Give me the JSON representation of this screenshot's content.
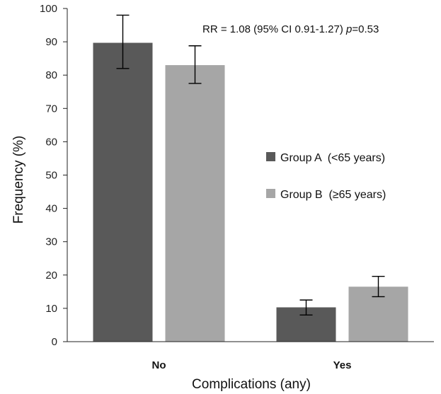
{
  "chart_data": {
    "type": "bar",
    "title": "",
    "xlabel": "Complications (any)",
    "ylabel": "Frequency  (%)",
    "ylim": [
      0,
      100
    ],
    "yticks": [
      0,
      10,
      20,
      30,
      40,
      50,
      60,
      70,
      80,
      90,
      100
    ],
    "grid": false,
    "legend_position": "right",
    "categories": [
      "No",
      "Yes"
    ],
    "series": [
      {
        "name": "Group A  (<65 years)",
        "color": "#595959",
        "values": [
          89.7,
          10.3
        ],
        "error_low": [
          82.0,
          8.0
        ],
        "error_high": [
          98.0,
          12.5
        ]
      },
      {
        "name": "Group B  (≥65 years)",
        "color": "#a6a6a6",
        "values": [
          83.0,
          16.5
        ],
        "error_low": [
          77.5,
          13.5
        ],
        "error_high": [
          88.8,
          19.6
        ]
      }
    ],
    "annotation": {
      "prefix": "RR = 1.08 (95% CI 0.91-1.27)  ",
      "p_symbol": "p",
      "p_value": "=0.53"
    }
  }
}
